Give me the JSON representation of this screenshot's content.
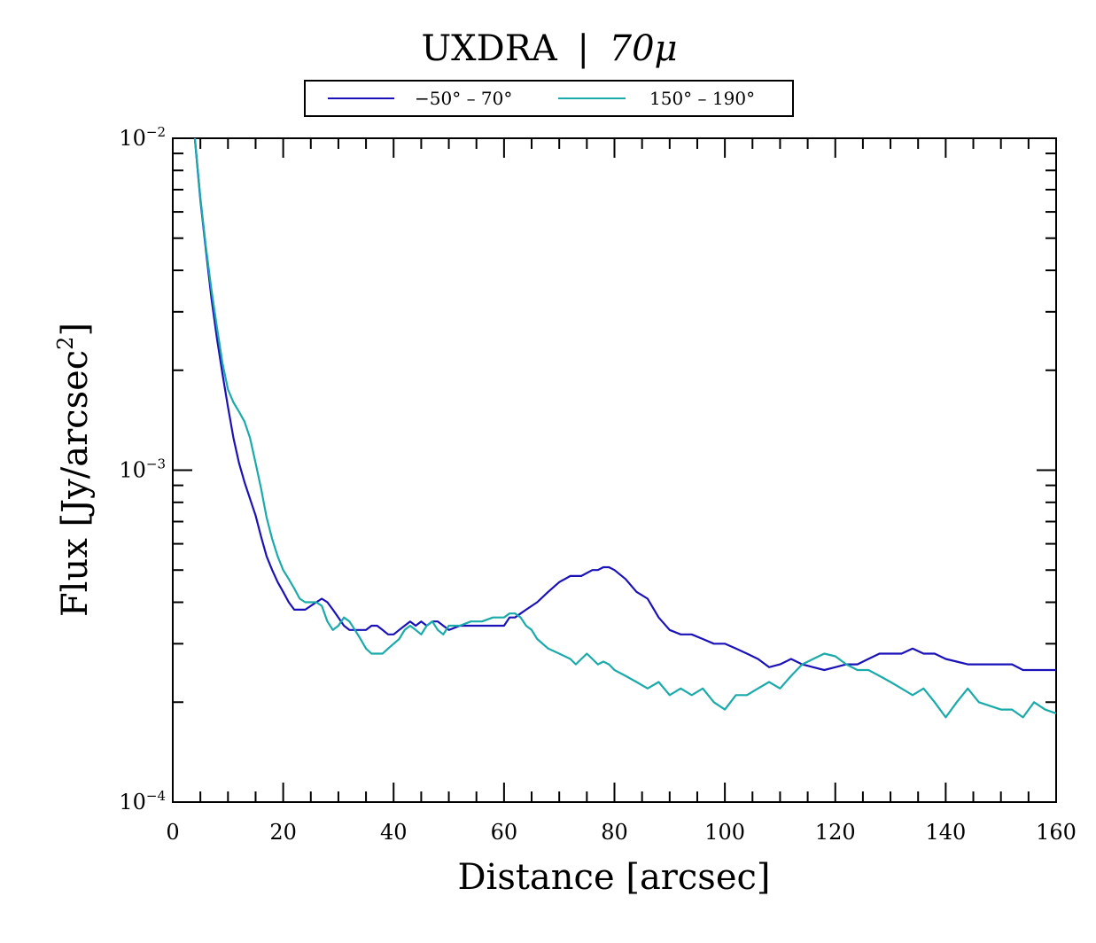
{
  "chart_data": {
    "type": "line",
    "title_main": "UXDRA",
    "title_sep": "|",
    "title_band": "70μ",
    "xlabel": "Distance [arcsec]",
    "ylabel_main": "Flux [Jy/arcsec",
    "ylabel_sup": "2",
    "ylabel_end": "]",
    "xlim": [
      0,
      160
    ],
    "ylim": [
      0.0001,
      0.01
    ],
    "yscale": "log",
    "legend_position": "top-center",
    "colors": {
      "series1": "#1a12b8",
      "series2": "#1aaaaa"
    },
    "x_ticks": [
      {
        "value": 0,
        "label": "0"
      },
      {
        "value": 20,
        "label": "20"
      },
      {
        "value": 40,
        "label": "40"
      },
      {
        "value": 60,
        "label": "60"
      },
      {
        "value": 80,
        "label": "80"
      },
      {
        "value": 100,
        "label": "100"
      },
      {
        "value": 120,
        "label": "120"
      },
      {
        "value": 140,
        "label": "140"
      },
      {
        "value": 160,
        "label": "160"
      }
    ],
    "y_ticks": [
      {
        "value": 0.01,
        "base": "10",
        "exp": "−2"
      },
      {
        "value": 0.001,
        "base": "10",
        "exp": "−3"
      },
      {
        "value": 0.0001,
        "base": "10",
        "exp": "−4"
      }
    ],
    "series": [
      {
        "name": "−50° – 70°",
        "color": "#1a12b8",
        "x": [
          4,
          5,
          6,
          7,
          8,
          9,
          10,
          11,
          12,
          13,
          14,
          15,
          16,
          17,
          18,
          19,
          20,
          21,
          22,
          23,
          24,
          25,
          26,
          27,
          28,
          29,
          30,
          31,
          32,
          33,
          34,
          35,
          36,
          37,
          38,
          39,
          40,
          41,
          42,
          43,
          44,
          45,
          46,
          47,
          48,
          49,
          50,
          52,
          54,
          56,
          58,
          60,
          61,
          62,
          63,
          64,
          66,
          68,
          70,
          72,
          74,
          76,
          77,
          78,
          79,
          80,
          82,
          84,
          86,
          88,
          90,
          92,
          94,
          96,
          98,
          100,
          102,
          104,
          106,
          108,
          110,
          112,
          114,
          116,
          118,
          120,
          122,
          124,
          126,
          128,
          130,
          132,
          134,
          136,
          138,
          140,
          142,
          144,
          146,
          148,
          150,
          152,
          154,
          156,
          158,
          160
        ],
        "values": [
          0.01,
          0.0065,
          0.0046,
          0.0033,
          0.0025,
          0.00195,
          0.00155,
          0.00125,
          0.00105,
          0.00092,
          0.00082,
          0.00073,
          0.00063,
          0.00055,
          0.0005,
          0.00046,
          0.00043,
          0.0004,
          0.00038,
          0.00038,
          0.00038,
          0.00039,
          0.0004,
          0.00041,
          0.0004,
          0.00038,
          0.00036,
          0.00034,
          0.00033,
          0.00033,
          0.00033,
          0.00033,
          0.00034,
          0.00034,
          0.00033,
          0.00032,
          0.00032,
          0.00033,
          0.00034,
          0.00035,
          0.00034,
          0.00035,
          0.00034,
          0.00035,
          0.00035,
          0.00034,
          0.00033,
          0.00034,
          0.00034,
          0.00034,
          0.00034,
          0.00034,
          0.00036,
          0.00036,
          0.00037,
          0.00038,
          0.0004,
          0.00043,
          0.00046,
          0.00048,
          0.00048,
          0.0005,
          0.0005,
          0.00051,
          0.00051,
          0.0005,
          0.00047,
          0.00043,
          0.00041,
          0.00036,
          0.00033,
          0.00032,
          0.00032,
          0.00031,
          0.0003,
          0.0003,
          0.00029,
          0.00028,
          0.00027,
          0.000255,
          0.00026,
          0.00027,
          0.00026,
          0.000255,
          0.00025,
          0.000255,
          0.00026,
          0.00026,
          0.00027,
          0.00028,
          0.00028,
          0.00028,
          0.00029,
          0.00028,
          0.00028,
          0.00027,
          0.000265,
          0.00026,
          0.00026,
          0.00026,
          0.00026,
          0.00026,
          0.00025,
          0.00025,
          0.00025,
          0.00025
        ]
      },
      {
        "name": "150° – 190°",
        "color": "#1aaaaa",
        "x": [
          4,
          5,
          6,
          7,
          8,
          9,
          10,
          11,
          12,
          13,
          14,
          15,
          16,
          17,
          18,
          19,
          20,
          21,
          22,
          23,
          24,
          25,
          26,
          27,
          28,
          29,
          30,
          31,
          32,
          33,
          34,
          35,
          36,
          37,
          38,
          39,
          40,
          41,
          42,
          43,
          44,
          45,
          46,
          47,
          48,
          49,
          50,
          52,
          54,
          56,
          58,
          60,
          61,
          62,
          63,
          64,
          65,
          66,
          68,
          70,
          72,
          73,
          74,
          75,
          76,
          77,
          78,
          79,
          80,
          82,
          84,
          86,
          88,
          90,
          92,
          94,
          96,
          98,
          100,
          102,
          104,
          106,
          108,
          110,
          112,
          114,
          116,
          118,
          120,
          122,
          124,
          126,
          128,
          130,
          132,
          134,
          136,
          138,
          140,
          142,
          144,
          146,
          148,
          150,
          152,
          154,
          156,
          158,
          160
        ],
        "values": [
          0.01,
          0.0066,
          0.0047,
          0.0035,
          0.0027,
          0.0021,
          0.00175,
          0.0016,
          0.0015,
          0.0014,
          0.00125,
          0.00105,
          0.00088,
          0.00072,
          0.00062,
          0.00055,
          0.0005,
          0.00047,
          0.00044,
          0.00041,
          0.0004,
          0.0004,
          0.0004,
          0.00039,
          0.00035,
          0.00033,
          0.00034,
          0.00036,
          0.00035,
          0.00033,
          0.00031,
          0.00029,
          0.00028,
          0.00028,
          0.00028,
          0.00029,
          0.0003,
          0.00031,
          0.00033,
          0.00034,
          0.00033,
          0.00032,
          0.00034,
          0.00035,
          0.00033,
          0.00032,
          0.00034,
          0.00034,
          0.00035,
          0.00035,
          0.00036,
          0.00036,
          0.00037,
          0.00037,
          0.00036,
          0.00034,
          0.00033,
          0.00031,
          0.00029,
          0.00028,
          0.00027,
          0.00026,
          0.00027,
          0.00028,
          0.00027,
          0.00026,
          0.000265,
          0.00026,
          0.00025,
          0.00024,
          0.00023,
          0.00022,
          0.00023,
          0.00021,
          0.00022,
          0.00021,
          0.00022,
          0.0002,
          0.00019,
          0.00021,
          0.00021,
          0.00022,
          0.00023,
          0.00022,
          0.00024,
          0.00026,
          0.00027,
          0.00028,
          0.000275,
          0.00026,
          0.00025,
          0.00025,
          0.00024,
          0.00023,
          0.00022,
          0.00021,
          0.00022,
          0.0002,
          0.00018,
          0.0002,
          0.00022,
          0.0002,
          0.000195,
          0.00019,
          0.00019,
          0.00018,
          0.0002,
          0.00019,
          0.000185
        ]
      }
    ]
  }
}
